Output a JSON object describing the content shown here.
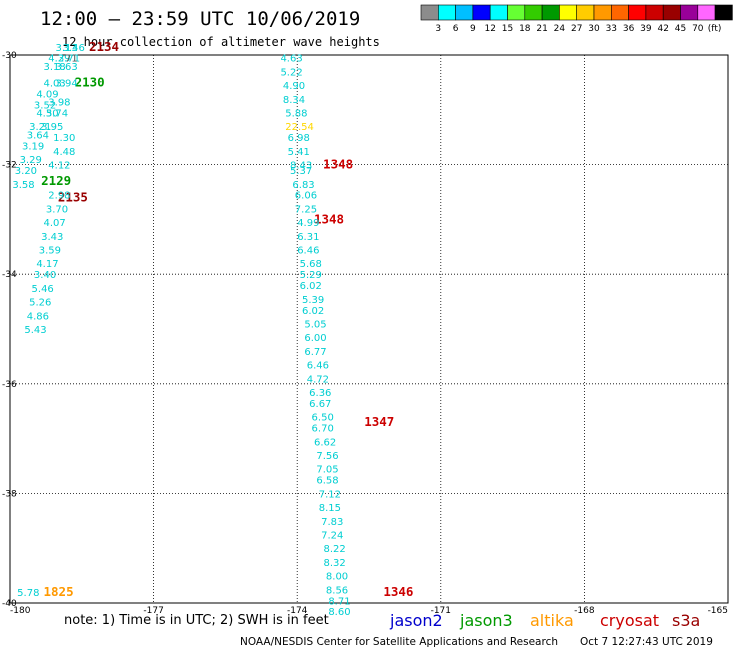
{
  "header": {
    "title": "12:00 — 23:59 UTC 10/06/2019",
    "subtitle": "12 hour collection of altimeter wave heights"
  },
  "colorbar": {
    "colors": [
      "#8c8c8c",
      "#00ffff",
      "#00bfff",
      "#0000ff",
      "#00ffff",
      "#66ff33",
      "#33cc00",
      "#009900",
      "#ffff00",
      "#ffcc00",
      "#ff9900",
      "#ff6600",
      "#ff0000",
      "#cc0000",
      "#990000",
      "#990099",
      "#ff66ff",
      "#000000"
    ],
    "labels": [
      "3",
      "6",
      "9",
      "12",
      "15",
      "18",
      "21",
      "24",
      "27",
      "30",
      "33",
      "36",
      "39",
      "42",
      "45",
      "70"
    ],
    "unit": "(ft)"
  },
  "axes": {
    "x_ticks": [
      "-180",
      "-177",
      "-174",
      "-171",
      "-168",
      "-165"
    ],
    "y_ticks": [
      "-30",
      "-32",
      "-34",
      "-36",
      "-38",
      "-40"
    ]
  },
  "footer": {
    "note": "note:  1) Time is in UTC;  2) SWH is in feet",
    "legend": [
      {
        "name": "jason2",
        "color": "#0000cc"
      },
      {
        "name": "jason3",
        "color": "#009900"
      },
      {
        "name": "altika",
        "color": "#ff9900"
      },
      {
        "name": "cryosat",
        "color": "#cc0000"
      },
      {
        "name": "s3a",
        "color": "#990000"
      }
    ],
    "credit": "NOAA/NESDIS Center for Satellite Applications and Research",
    "generated": "Oct  7 12:27:43 UTC 2019"
  },
  "chart_data": {
    "type": "scatter",
    "title": "12:00 — 23:59 UTC 10/06/2019",
    "subtitle": "12 hour collection of altimeter wave heights",
    "xlim": [
      -180,
      -165
    ],
    "ylim": [
      -40,
      -30
    ],
    "grid": true,
    "series": [
      {
        "name": "cryosat",
        "color": "#cc0000",
        "points": [
          {
            "lon": -173.46,
            "lat": -32.0,
            "swh": "1348"
          },
          {
            "lon": -173.65,
            "lat": -33.0,
            "swh": "1348"
          },
          {
            "lon": -172.6,
            "lat": -36.7,
            "swh": "1347"
          },
          {
            "lon": -172.2,
            "lat": -39.8,
            "swh": "1346"
          }
        ]
      },
      {
        "name": "s3a",
        "color": "#990000",
        "points": [
          {
            "lon": -178.35,
            "lat": -29.85,
            "swh": "2134"
          },
          {
            "lon": -179.0,
            "lat": -32.6,
            "swh": "2135"
          }
        ]
      },
      {
        "name": "jason3",
        "color": "#009900",
        "points": [
          {
            "lon": -178.65,
            "lat": -30.5,
            "swh": "2130"
          },
          {
            "lon": -179.35,
            "lat": -32.3,
            "swh": "2129"
          }
        ]
      },
      {
        "name": "altika",
        "color": "#ff9900",
        "points": [
          {
            "lon": -179.3,
            "lat": -39.8,
            "swh": "1825"
          }
        ]
      },
      {
        "name": "",
        "color": "#00ced1",
        "points": [
          {
            "lon": -179.05,
            "lat": -29.85,
            "swh": "3.13"
          },
          {
            "lon": -178.9,
            "lat": -29.85,
            "swh": "3.46"
          },
          {
            "lon": -179.2,
            "lat": -30.05,
            "swh": "4.29"
          },
          {
            "lon": -179.0,
            "lat": -30.05,
            "swh": "3.71"
          },
          {
            "lon": -179.3,
            "lat": -30.2,
            "swh": "3.18"
          },
          {
            "lon": -179.05,
            "lat": -30.2,
            "swh": "3.63"
          },
          {
            "lon": -179.3,
            "lat": -30.5,
            "swh": "4.03"
          },
          {
            "lon": -179.05,
            "lat": -30.5,
            "swh": "3.94"
          },
          {
            "lon": -179.45,
            "lat": -30.7,
            "swh": "4.09"
          },
          {
            "lon": -179.2,
            "lat": -30.85,
            "swh": "3.98"
          },
          {
            "lon": -179.5,
            "lat": -30.9,
            "swh": "3.52"
          },
          {
            "lon": -179.45,
            "lat": -31.05,
            "swh": "4.50"
          },
          {
            "lon": -179.25,
            "lat": -31.05,
            "swh": "3.74"
          },
          {
            "lon": -179.6,
            "lat": -31.3,
            "swh": "3.21"
          },
          {
            "lon": -179.35,
            "lat": -31.3,
            "swh": "3.95"
          },
          {
            "lon": -179.65,
            "lat": -31.45,
            "swh": "3.64"
          },
          {
            "lon": -179.75,
            "lat": -31.65,
            "swh": "3.19"
          },
          {
            "lon": -179.8,
            "lat": -31.9,
            "swh": "3.29"
          },
          {
            "lon": -179.9,
            "lat": -32.1,
            "swh": "3.20"
          },
          {
            "lon": -179.95,
            "lat": -32.35,
            "swh": "3.58"
          },
          {
            "lon": -179.1,
            "lat": -31.5,
            "swh": "1.30"
          },
          {
            "lon": -179.1,
            "lat": -31.75,
            "swh": "4.48"
          },
          {
            "lon": -179.2,
            "lat": -32.0,
            "swh": "4.12"
          },
          {
            "lon": -179.2,
            "lat": -32.55,
            "swh": "2.98"
          },
          {
            "lon": -179.25,
            "lat": -32.8,
            "swh": "3.70"
          },
          {
            "lon": -179.3,
            "lat": -33.05,
            "swh": "4.07"
          },
          {
            "lon": -179.35,
            "lat": -33.3,
            "swh": "3.43"
          },
          {
            "lon": -179.4,
            "lat": -33.55,
            "swh": "3.59"
          },
          {
            "lon": -179.45,
            "lat": -33.8,
            "swh": "4.17"
          },
          {
            "lon": -179.5,
            "lat": -34.0,
            "swh": "3.40"
          },
          {
            "lon": -179.55,
            "lat": -34.25,
            "swh": "5.46"
          },
          {
            "lon": -179.6,
            "lat": -34.5,
            "swh": "5.26"
          },
          {
            "lon": -179.65,
            "lat": -34.75,
            "swh": "4.86"
          },
          {
            "lon": -179.7,
            "lat": -35.0,
            "swh": "5.43"
          },
          {
            "lon": -179.85,
            "lat": -39.8,
            "swh": "5.78"
          },
          {
            "lon": -174.35,
            "lat": -30.05,
            "swh": "4.63"
          },
          {
            "lon": -174.35,
            "lat": -30.3,
            "swh": "5.22"
          },
          {
            "lon": -174.3,
            "lat": -30.55,
            "swh": "4.90"
          },
          {
            "lon": -174.3,
            "lat": -30.8,
            "swh": "8.34"
          },
          {
            "lon": -174.25,
            "lat": -31.05,
            "swh": "5.88"
          },
          {
            "lon": -174.2,
            "lat": -31.5,
            "swh": "6.98"
          },
          {
            "lon": -174.2,
            "lat": -31.75,
            "swh": "5.41"
          },
          {
            "lon": -174.15,
            "lat": -32.0,
            "swh": "8.43"
          },
          {
            "lon": -174.15,
            "lat": -32.1,
            "swh": "5.37"
          },
          {
            "lon": -174.1,
            "lat": -32.35,
            "swh": "6.83"
          },
          {
            "lon": -174.05,
            "lat": -32.55,
            "swh": "6.06"
          },
          {
            "lon": -174.05,
            "lat": -32.8,
            "swh": "7.25"
          },
          {
            "lon": -174.0,
            "lat": -33.05,
            "swh": "4.99"
          },
          {
            "lon": -174.0,
            "lat": -33.3,
            "swh": "6.31"
          },
          {
            "lon": -174.0,
            "lat": -33.55,
            "swh": "6.46"
          },
          {
            "lon": -173.95,
            "lat": -33.8,
            "swh": "5.68"
          },
          {
            "lon": -173.95,
            "lat": -34.0,
            "swh": "5.29"
          },
          {
            "lon": -173.95,
            "lat": -34.2,
            "swh": "6.02"
          },
          {
            "lon": -173.9,
            "lat": -34.45,
            "swh": "5.39"
          },
          {
            "lon": -173.9,
            "lat": -34.65,
            "swh": "6.02"
          },
          {
            "lon": -173.85,
            "lat": -34.9,
            "swh": "5.05"
          },
          {
            "lon": -173.85,
            "lat": -35.15,
            "swh": "6.00"
          },
          {
            "lon": -173.85,
            "lat": -35.4,
            "swh": "6.77"
          },
          {
            "lon": -173.8,
            "lat": -35.65,
            "swh": "6.46"
          },
          {
            "lon": -173.8,
            "lat": -35.9,
            "swh": "4.72"
          },
          {
            "lon": -173.75,
            "lat": -36.15,
            "swh": "6.36"
          },
          {
            "lon": -173.75,
            "lat": -36.35,
            "swh": "6.67"
          },
          {
            "lon": -173.7,
            "lat": -36.6,
            "swh": "6.50"
          },
          {
            "lon": -173.7,
            "lat": -36.8,
            "swh": "6.70"
          },
          {
            "lon": -173.65,
            "lat": -37.05,
            "swh": "6.62"
          },
          {
            "lon": -173.6,
            "lat": -37.3,
            "swh": "7.56"
          },
          {
            "lon": -173.6,
            "lat": -37.55,
            "swh": "7.05"
          },
          {
            "lon": -173.6,
            "lat": -37.75,
            "swh": "6.58"
          },
          {
            "lon": -173.55,
            "lat": -38.0,
            "swh": "7.12"
          },
          {
            "lon": -173.55,
            "lat": -38.25,
            "swh": "8.15"
          },
          {
            "lon": -173.5,
            "lat": -38.5,
            "swh": "7.83"
          },
          {
            "lon": -173.5,
            "lat": -38.75,
            "swh": "7.24"
          },
          {
            "lon": -173.45,
            "lat": -39.0,
            "swh": "8.22"
          },
          {
            "lon": -173.45,
            "lat": -39.25,
            "swh": "8.32"
          },
          {
            "lon": -173.4,
            "lat": -39.5,
            "swh": "8.00"
          },
          {
            "lon": -173.4,
            "lat": -39.75,
            "swh": "8.56"
          },
          {
            "lon": -173.35,
            "lat": -39.95,
            "swh": "8.71"
          },
          {
            "lon": -173.35,
            "lat": -40.15,
            "swh": "8.60"
          }
        ]
      },
      {
        "name": "",
        "color": "#ffd700",
        "points": [
          {
            "lon": -174.25,
            "lat": -31.3,
            "swh": "22.54"
          }
        ]
      },
      {
        "name": "",
        "color": "#555555",
        "points": [
          {
            "lon": -178.85,
            "lat": -30.05,
            "swh": "71"
          }
        ]
      }
    ]
  }
}
